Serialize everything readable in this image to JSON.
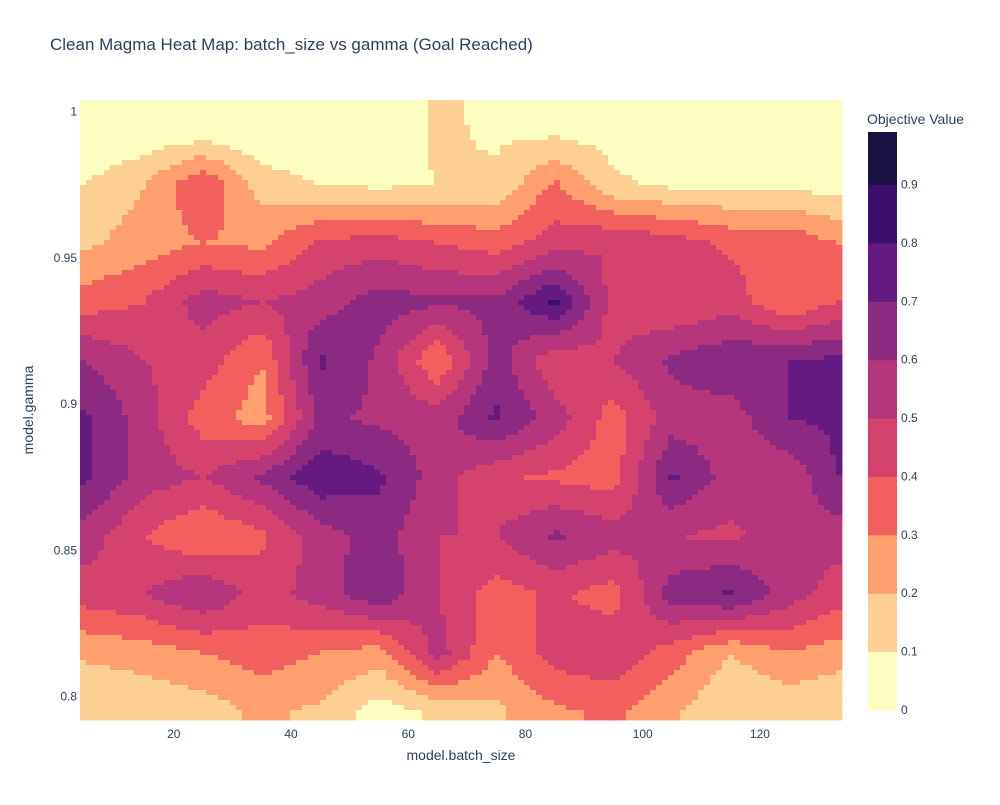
{
  "chart_data": {
    "type": "heatmap",
    "style": "contour",
    "title": "Clean Magma Heat Map: batch_size vs gamma (Goal Reached)",
    "xlabel": "model.batch_size",
    "ylabel": "model.gamma",
    "xlim": [
      4,
      134
    ],
    "ylim": [
      0.792,
      1.004
    ],
    "x_ticks": [
      20,
      40,
      60,
      80,
      100,
      120
    ],
    "x_tick_labels": [
      "20",
      "40",
      "60",
      "80",
      "100",
      "120"
    ],
    "y_ticks": [
      0.8,
      0.85,
      0.9,
      0.95,
      1.0
    ],
    "y_tick_labels": [
      "0.8",
      "0.85",
      "0.9",
      "0.95",
      "1"
    ],
    "colorbar": {
      "title": "Objective Value",
      "ticks": [
        0,
        0.1,
        0.2,
        0.3,
        0.4,
        0.5,
        0.6,
        0.7,
        0.8,
        0.9
      ],
      "tick_labels": [
        "0",
        "0.1",
        "0.2",
        "0.3",
        "0.4",
        "0.5",
        "0.6",
        "0.7",
        "0.8",
        "0.9"
      ],
      "range": [
        0,
        0.99
      ],
      "colors": [
        "#fcfdbf",
        "#fecf92",
        "#fe9f6d",
        "#f1605d",
        "#d3436e",
        "#b5367a",
        "#8c2981",
        "#641a80",
        "#3b0f70",
        "#1a1042",
        "#000004"
      ]
    },
    "x": [
      5,
      15,
      25,
      35,
      45,
      55,
      65,
      75,
      85,
      95,
      105,
      115,
      125,
      133
    ],
    "y": [
      0.795,
      0.815,
      0.835,
      0.855,
      0.875,
      0.895,
      0.915,
      0.935,
      0.955,
      0.975,
      0.995
    ],
    "z": [
      [
        0.1,
        0.12,
        0.15,
        0.22,
        0.18,
        0.05,
        0.12,
        0.18,
        0.28,
        0.32,
        0.22,
        0.1,
        0.12,
        0.1
      ],
      [
        0.22,
        0.25,
        0.3,
        0.35,
        0.3,
        0.25,
        0.55,
        0.3,
        0.45,
        0.48,
        0.35,
        0.2,
        0.3,
        0.25
      ],
      [
        0.45,
        0.5,
        0.6,
        0.45,
        0.55,
        0.68,
        0.5,
        0.35,
        0.42,
        0.35,
        0.65,
        0.72,
        0.55,
        0.45
      ],
      [
        0.55,
        0.4,
        0.3,
        0.38,
        0.55,
        0.65,
        0.5,
        0.5,
        0.62,
        0.55,
        0.5,
        0.48,
        0.55,
        0.55
      ],
      [
        0.72,
        0.55,
        0.5,
        0.62,
        0.78,
        0.72,
        0.55,
        0.42,
        0.38,
        0.35,
        0.72,
        0.55,
        0.52,
        0.7
      ],
      [
        0.72,
        0.55,
        0.35,
        0.25,
        0.62,
        0.58,
        0.55,
        0.72,
        0.55,
        0.35,
        0.55,
        0.55,
        0.7,
        0.72
      ],
      [
        0.6,
        0.5,
        0.45,
        0.3,
        0.72,
        0.58,
        0.3,
        0.65,
        0.42,
        0.5,
        0.62,
        0.68,
        0.7,
        0.72
      ],
      [
        0.35,
        0.4,
        0.55,
        0.5,
        0.55,
        0.65,
        0.62,
        0.62,
        0.82,
        0.45,
        0.4,
        0.45,
        0.3,
        0.4
      ],
      [
        0.18,
        0.25,
        0.3,
        0.28,
        0.42,
        0.45,
        0.4,
        0.35,
        0.45,
        0.5,
        0.45,
        0.38,
        0.38,
        0.3
      ],
      [
        0.1,
        0.2,
        0.4,
        0.15,
        0.1,
        0.08,
        0.1,
        0.12,
        0.32,
        0.12,
        0.08,
        0.08,
        0.08,
        0.05
      ],
      [
        0.0,
        0.0,
        0.0,
        0.0,
        0.0,
        0.0,
        0.12,
        0.08,
        0.05,
        0.05,
        0.0,
        0.0,
        0.0,
        0.0
      ]
    ]
  }
}
